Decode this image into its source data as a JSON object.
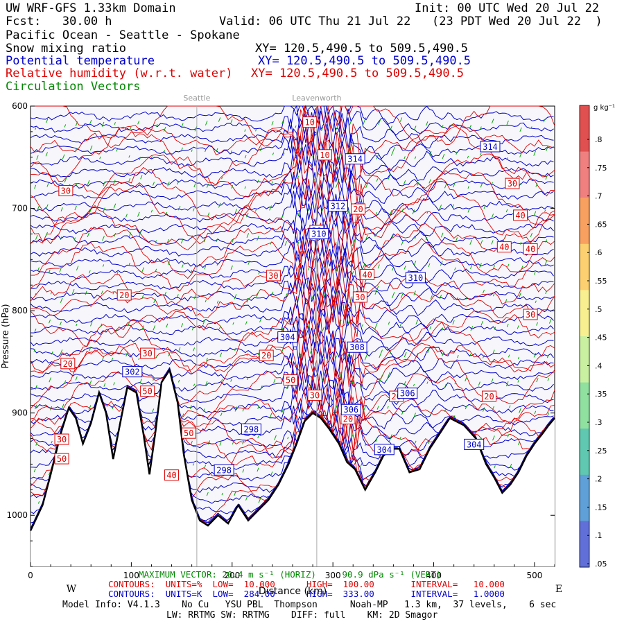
{
  "header": {
    "domain": "UW WRF-GFS 1.33km Domain",
    "init": "Init: 00 UTC Wed 20 Jul 22",
    "fcst": "Fcst:   30.00 h",
    "valid": "Valid: 06 UTC Thu 21 Jul 22   (23 PDT Wed 20 Jul 22  )",
    "section_title": "Pacific Ocean - Seattle - Spokane",
    "fields": [
      {
        "label": "Snow mixing ratio",
        "xy": "XY= 120.5,490.5 to 509.5,490.5",
        "color": "#000000"
      },
      {
        "label": "Potential temperature",
        "xy": "XY= 120.5,490.5 to 509.5,490.5",
        "color": "#0000cc"
      },
      {
        "label": "Relative humidity (w.r.t. water)",
        "xy": "XY= 120.5,490.5 to 509.5,490.5",
        "color": "#dd0000"
      },
      {
        "label": "Circulation Vectors",
        "xy": "",
        "color": "#008800"
      }
    ]
  },
  "locations": [
    "Seattle",
    "Leavenworth"
  ],
  "axes": {
    "y_ticks": [
      "600",
      "700",
      "800",
      "900",
      "1000"
    ],
    "x_ticks": [
      "0",
      "100",
      "200",
      "300",
      "400",
      "500"
    ],
    "x_label": "Distance (km)",
    "west": "W",
    "east": "E",
    "y_label": "Pressure (hPa)"
  },
  "colorbar": {
    "unit": "g kg⁻¹",
    "ticks": [
      ".8",
      ".75",
      ".7",
      ".65",
      ".6",
      ".55",
      ".5",
      ".45",
      ".4",
      ".35",
      ".3",
      ".25",
      ".2",
      ".15",
      ".1",
      ".05"
    ]
  },
  "footer": {
    "max_vector": "MAXIMUM VECTOR: 20.4 m s⁻¹ (HORIZ)     90.9 dPa s⁻¹ (VERT)",
    "rh_contours": "CONTOURS:  UNITS=%  LOW=  10.000      HIGH=  100.00       INTERVAL=   10.000",
    "th_contours": "CONTOURS:  UNITS=K  LOW=  284.00      HIGH=  333.00       INTERVAL=   1.0000",
    "model_info": "Model Info: V4.1.3    No Cu   YSU PBL  Thompson      Noah-MP   1.3 km,  37 levels,    6 sec",
    "physics": "LW: RRTMG SW: RRTMG    DIFF: full    KM: 2D Smagor"
  },
  "chart_data": {
    "type": "cross-section",
    "x_unit": "km",
    "y_unit": "hPa",
    "xlim": [
      0,
      520
    ],
    "ylim": [
      1050,
      600
    ],
    "terrain_pressure": [
      [
        0,
        1015
      ],
      [
        12,
        990
      ],
      [
        20,
        960
      ],
      [
        30,
        920
      ],
      [
        38,
        895
      ],
      [
        45,
        905
      ],
      [
        52,
        930
      ],
      [
        60,
        910
      ],
      [
        68,
        880
      ],
      [
        75,
        900
      ],
      [
        82,
        945
      ],
      [
        88,
        915
      ],
      [
        96,
        875
      ],
      [
        105,
        880
      ],
      [
        112,
        920
      ],
      [
        118,
        960
      ],
      [
        124,
        918
      ],
      [
        130,
        870
      ],
      [
        138,
        858
      ],
      [
        146,
        890
      ],
      [
        152,
        940
      ],
      [
        160,
        985
      ],
      [
        168,
        1005
      ],
      [
        176,
        1010
      ],
      [
        186,
        1000
      ],
      [
        196,
        1008
      ],
      [
        206,
        990
      ],
      [
        216,
        1005
      ],
      [
        226,
        995
      ],
      [
        236,
        985
      ],
      [
        246,
        970
      ],
      [
        256,
        950
      ],
      [
        264,
        930
      ],
      [
        272,
        908
      ],
      [
        280,
        900
      ],
      [
        288,
        905
      ],
      [
        296,
        915
      ],
      [
        306,
        930
      ],
      [
        314,
        948
      ],
      [
        322,
        955
      ],
      [
        332,
        975
      ],
      [
        342,
        958
      ],
      [
        350,
        942
      ],
      [
        358,
        935
      ],
      [
        366,
        935
      ],
      [
        376,
        958
      ],
      [
        386,
        955
      ],
      [
        396,
        935
      ],
      [
        406,
        920
      ],
      [
        416,
        905
      ],
      [
        430,
        912
      ],
      [
        442,
        925
      ],
      [
        452,
        950
      ],
      [
        460,
        963
      ],
      [
        468,
        978
      ],
      [
        476,
        970
      ],
      [
        484,
        958
      ],
      [
        492,
        942
      ],
      [
        500,
        930
      ],
      [
        508,
        920
      ],
      [
        514,
        912
      ],
      [
        520,
        905
      ]
    ],
    "theta_labels": [
      {
        "x": 456,
        "p": 640,
        "v": "314"
      },
      {
        "x": 322,
        "p": 652,
        "v": "314"
      },
      {
        "x": 305,
        "p": 698,
        "v": "312"
      },
      {
        "x": 286,
        "p": 725,
        "v": "310"
      },
      {
        "x": 382,
        "p": 768,
        "v": "310"
      },
      {
        "x": 255,
        "p": 826,
        "v": "304"
      },
      {
        "x": 324,
        "p": 836,
        "v": "308"
      },
      {
        "x": 101,
        "p": 860,
        "v": "302"
      },
      {
        "x": 374,
        "p": 881,
        "v": "306"
      },
      {
        "x": 318,
        "p": 897,
        "v": "306"
      },
      {
        "x": 219,
        "p": 916,
        "v": "298"
      },
      {
        "x": 440,
        "p": 931,
        "v": "304"
      },
      {
        "x": 351,
        "p": 936,
        "v": "304"
      },
      {
        "x": 192,
        "p": 956,
        "v": "298"
      }
    ],
    "rh_labels": [
      {
        "x": 277,
        "p": 616,
        "v": "10"
      },
      {
        "x": 292,
        "p": 648,
        "v": "10"
      },
      {
        "x": 35,
        "p": 683,
        "v": "30"
      },
      {
        "x": 478,
        "p": 676,
        "v": "30"
      },
      {
        "x": 325,
        "p": 701,
        "v": "20"
      },
      {
        "x": 486,
        "p": 707,
        "v": "40"
      },
      {
        "x": 284,
        "p": 722,
        "v": "30"
      },
      {
        "x": 470,
        "p": 738,
        "v": "40"
      },
      {
        "x": 496,
        "p": 740,
        "v": "40"
      },
      {
        "x": 241,
        "p": 766,
        "v": "30"
      },
      {
        "x": 334,
        "p": 765,
        "v": "40"
      },
      {
        "x": 93,
        "p": 785,
        "v": "20"
      },
      {
        "x": 327,
        "p": 787,
        "v": "30"
      },
      {
        "x": 496,
        "p": 804,
        "v": "30"
      },
      {
        "x": 37,
        "p": 852,
        "v": "20"
      },
      {
        "x": 116,
        "p": 842,
        "v": "30"
      },
      {
        "x": 234,
        "p": 844,
        "v": "20"
      },
      {
        "x": 258,
        "p": 868,
        "v": "50"
      },
      {
        "x": 116,
        "p": 879,
        "v": "50"
      },
      {
        "x": 363,
        "p": 884,
        "v": "20"
      },
      {
        "x": 455,
        "p": 884,
        "v": "20"
      },
      {
        "x": 282,
        "p": 883,
        "v": "30"
      },
      {
        "x": 315,
        "p": 906,
        "v": "20"
      },
      {
        "x": 31,
        "p": 926,
        "v": "30"
      },
      {
        "x": 157,
        "p": 920,
        "v": "50"
      },
      {
        "x": 31,
        "p": 945,
        "v": "50"
      },
      {
        "x": 140,
        "p": 961,
        "v": "40"
      }
    ]
  }
}
